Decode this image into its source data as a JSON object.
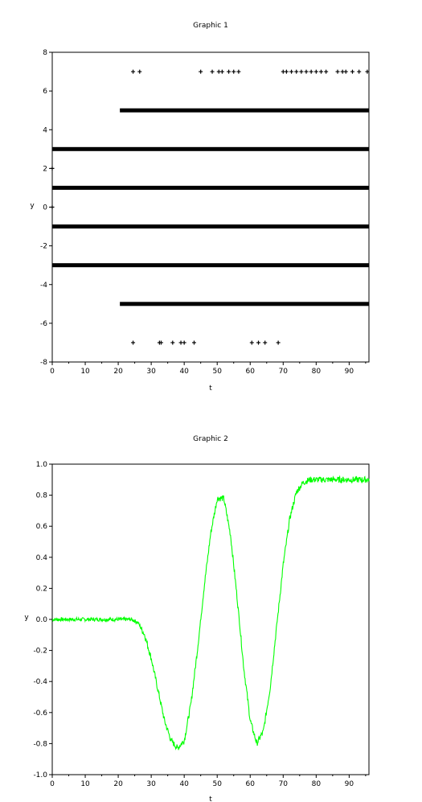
{
  "chart_data": [
    {
      "type": "scatter",
      "title": "Graphic 1",
      "xlabel": "t",
      "ylabel": "y",
      "xlim": [
        0,
        96
      ],
      "ylim": [
        -8,
        8
      ],
      "xticks": [
        0,
        10,
        20,
        30,
        40,
        50,
        60,
        70,
        80,
        90
      ],
      "yticks": [
        -8,
        -6,
        -4,
        -2,
        0,
        2,
        4,
        6,
        8
      ],
      "marker_color": "#000000",
      "series": [
        {
          "points": [
            {
              "x": 0,
              "y": 2
            },
            {
              "x": 0,
              "y": 0
            },
            {
              "x": 24.5,
              "y": 7
            },
            {
              "x": 26.5,
              "y": 7
            },
            {
              "x": 45,
              "y": 7
            },
            {
              "x": 48.5,
              "y": 7
            },
            {
              "x": 50.5,
              "y": 7
            },
            {
              "x": 51.5,
              "y": 7
            },
            {
              "x": 53.5,
              "y": 7
            },
            {
              "x": 55,
              "y": 7
            },
            {
              "x": 56.5,
              "y": 7
            },
            {
              "x": 70,
              "y": 7
            },
            {
              "x": 71,
              "y": 7
            },
            {
              "x": 72.5,
              "y": 7
            },
            {
              "x": 74,
              "y": 7
            },
            {
              "x": 75.5,
              "y": 7
            },
            {
              "x": 77,
              "y": 7
            },
            {
              "x": 78.5,
              "y": 7
            },
            {
              "x": 80,
              "y": 7
            },
            {
              "x": 81.5,
              "y": 7
            },
            {
              "x": 83,
              "y": 7
            },
            {
              "x": 86.5,
              "y": 7
            },
            {
              "x": 88,
              "y": 7
            },
            {
              "x": 89,
              "y": 7
            },
            {
              "x": 91,
              "y": 7
            },
            {
              "x": 93,
              "y": 7
            },
            {
              "x": 95.5,
              "y": 7
            },
            {
              "x": 24.5,
              "y": -7
            },
            {
              "x": 32.5,
              "y": -7
            },
            {
              "x": 33,
              "y": -7
            },
            {
              "x": 36.5,
              "y": -7
            },
            {
              "x": 39,
              "y": -7
            },
            {
              "x": 40,
              "y": -7
            },
            {
              "x": 43,
              "y": -7
            },
            {
              "x": 60.5,
              "y": -7
            },
            {
              "x": 62.5,
              "y": -7
            },
            {
              "x": 64.5,
              "y": -7
            },
            {
              "x": 68.5,
              "y": -7
            }
          ],
          "dense_bands": [
            {
              "y": 5,
              "x_start": 20.5,
              "x_end": 96
            },
            {
              "y": 3,
              "x_start": 0,
              "x_end": 96
            },
            {
              "y": 1,
              "x_start": 0,
              "x_end": 96
            },
            {
              "y": -1,
              "x_start": 0,
              "x_end": 96
            },
            {
              "y": -3,
              "x_start": 0,
              "x_end": 96
            },
            {
              "y": -5,
              "x_start": 20.5,
              "x_end": 96
            }
          ]
        }
      ]
    },
    {
      "type": "line",
      "title": "Graphic 2",
      "xlabel": "t",
      "ylabel": "y",
      "xlim": [
        0,
        96
      ],
      "ylim": [
        -1.0,
        1.0
      ],
      "xticks": [
        0,
        10,
        20,
        30,
        40,
        50,
        60,
        70,
        80,
        90
      ],
      "yticks": [
        -1.0,
        -0.8,
        -0.6,
        -0.4,
        -0.2,
        0.0,
        0.2,
        0.4,
        0.6,
        0.8,
        1.0
      ],
      "line_color": "#00ff00",
      "series": [
        {
          "x": [
            0,
            5,
            10,
            15,
            20,
            22,
            24,
            26,
            28,
            30,
            32,
            34,
            36,
            38,
            40,
            42,
            44,
            46,
            48,
            50,
            52,
            54,
            56,
            58,
            60,
            62,
            64,
            66,
            68,
            70,
            72,
            74,
            76,
            78,
            80,
            85,
            90,
            96
          ],
          "values": [
            0.0,
            0.0,
            0.0,
            0.0,
            0.0,
            0.0,
            0.0,
            -0.02,
            -0.1,
            -0.25,
            -0.45,
            -0.65,
            -0.78,
            -0.83,
            -0.78,
            -0.55,
            -0.2,
            0.2,
            0.55,
            0.78,
            0.78,
            0.55,
            0.15,
            -0.3,
            -0.65,
            -0.8,
            -0.72,
            -0.45,
            -0.05,
            0.35,
            0.65,
            0.82,
            0.88,
            0.9,
            0.9,
            0.9,
            0.9,
            0.9
          ]
        }
      ]
    }
  ]
}
